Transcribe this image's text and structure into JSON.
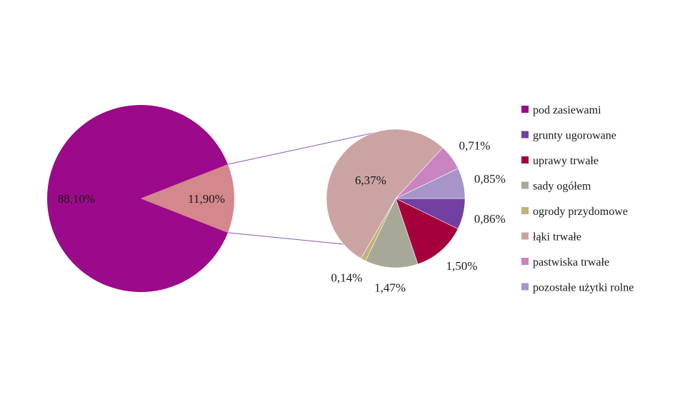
{
  "chart_data": {
    "type": "pie",
    "main_pie": {
      "slices": [
        {
          "label": "88,10%",
          "value": 88.1,
          "color": "#9b0a8a"
        },
        {
          "label": "11,90%",
          "value": 11.9,
          "color": "#d4878c"
        }
      ]
    },
    "sub_pie": {
      "slices": [
        {
          "name": "grunty ugorowane",
          "value": 0.86,
          "label": "0,86%",
          "color": "#7140a0"
        },
        {
          "name": "uprawy trwałe",
          "value": 1.5,
          "label": "1,50%",
          "color": "#a5003c"
        },
        {
          "name": "sady ogółem",
          "value": 1.47,
          "label": "1,47%",
          "color": "#a8a898"
        },
        {
          "name": "ogrody przydomowe",
          "value": 0.14,
          "label": "0,14%",
          "color": "#bfb27a"
        },
        {
          "name": "łąki trwałe",
          "value": 6.37,
          "label": "6,37%",
          "color": "#cca3a3"
        },
        {
          "name": "pastwiska trwałe",
          "value": 0.71,
          "label": "0,71%",
          "color": "#c983c0"
        },
        {
          "name": "pozostałe użytki rolne",
          "value": 0.85,
          "label": "0,85%",
          "color": "#a794c9"
        }
      ]
    },
    "connector_color": "#8a55b0",
    "legend": {
      "position": "right",
      "entries": [
        {
          "label": "pod zasiewami",
          "color": "#9b0a8a"
        },
        {
          "label": "grunty ugorowane",
          "color": "#7140a0"
        },
        {
          "label": "uprawy trwałe",
          "color": "#a5003c"
        },
        {
          "label": "sady ogółem",
          "color": "#a8a898"
        },
        {
          "label": "ogrody przydomowe",
          "color": "#bfb27a"
        },
        {
          "label": "łąki trwałe",
          "color": "#cca3a3"
        },
        {
          "label": "pastwiska trwałe",
          "color": "#c983c0"
        },
        {
          "label": "pozostałe użytki rolne",
          "color": "#a794c9"
        }
      ]
    }
  }
}
